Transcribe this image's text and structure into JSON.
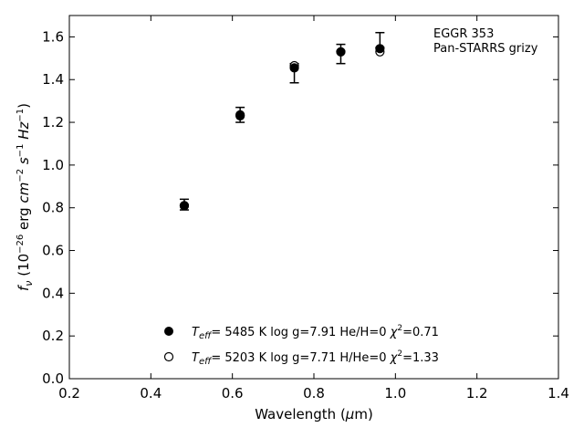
{
  "chart_data": {
    "type": "scatter",
    "object_name": "EGGR 353",
    "survey_label": "Pan-STARRS grizy",
    "xlabel": "Wavelength (μm)",
    "ylabel": "f_ν (10^-26 erg cm^-2 s^-1 Hz^-1)",
    "xlim": [
      0.2,
      1.4
    ],
    "ylim": [
      0.0,
      1.7
    ],
    "x_ticks": [
      "0.2",
      "0.4",
      "0.6",
      "0.8",
      "1.0",
      "1.2",
      "1.4"
    ],
    "y_ticks": [
      "0.0",
      "0.2",
      "0.4",
      "0.6",
      "0.8",
      "1.0",
      "1.2",
      "1.4",
      "1.6"
    ],
    "grid": false,
    "observed": {
      "x": [
        0.482,
        0.619,
        0.752,
        0.866,
        0.962
      ],
      "y": [
        0.815,
        1.235,
        1.43,
        1.52,
        1.585
      ],
      "yerr": [
        0.025,
        0.035,
        0.045,
        0.045,
        0.035
      ]
    },
    "series": [
      {
        "marker": "filled-circle",
        "legend_text": "T_eff=  5485 K  log g=7.91  He/H=0  χ²=0.71",
        "x": [
          0.482,
          0.619,
          0.752,
          0.866,
          0.962
        ],
        "y": [
          0.81,
          1.23,
          1.455,
          1.53,
          1.545
        ]
      },
      {
        "marker": "open-circle",
        "legend_text": "T_eff=  5203 K  log g=7.71  H/He=0  χ²=1.33",
        "x": [
          0.482,
          0.619,
          0.752,
          0.866,
          0.962
        ],
        "y": [
          0.81,
          1.235,
          1.465,
          1.53,
          1.53
        ]
      }
    ],
    "legend_location": "lower-center",
    "colors": {
      "marker": "#000000",
      "axes": "#000000",
      "background": "#ffffff"
    }
  }
}
